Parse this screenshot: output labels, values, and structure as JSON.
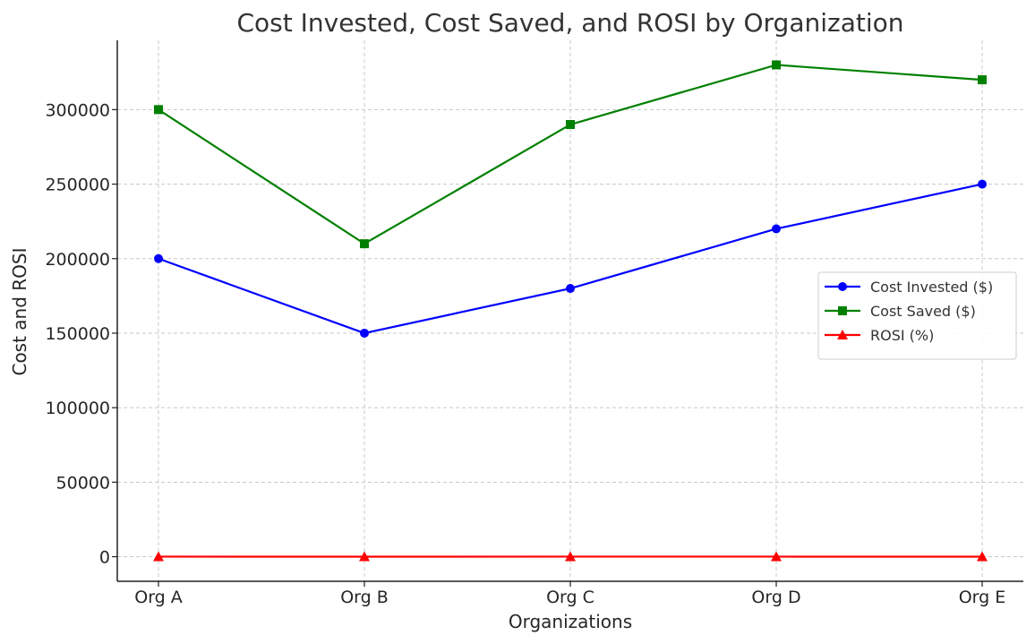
{
  "chart_data": {
    "type": "line",
    "title": "Cost Invested, Cost Saved, and ROSI by Organization",
    "xlabel": "Organizations",
    "ylabel": "Cost and ROSI",
    "categories": [
      "Org A",
      "Org B",
      "Org C",
      "Org D",
      "Org E"
    ],
    "ylim": [
      -16500,
      346500
    ],
    "yticks": [
      0,
      50000,
      100000,
      150000,
      200000,
      250000,
      300000
    ],
    "grid": true,
    "legend_position": "center-right",
    "series": [
      {
        "name": "Cost Invested ($)",
        "color": "#0000ff",
        "marker": "circle",
        "values": [
          200000,
          150000,
          180000,
          220000,
          250000
        ]
      },
      {
        "name": "Cost Saved ($)",
        "color": "#008000",
        "marker": "square",
        "values": [
          300000,
          210000,
          290000,
          330000,
          320000
        ]
      },
      {
        "name": "ROSI (%)",
        "color": "#ff0000",
        "marker": "triangle",
        "values": [
          50,
          40,
          61.11,
          50,
          28
        ]
      }
    ]
  }
}
